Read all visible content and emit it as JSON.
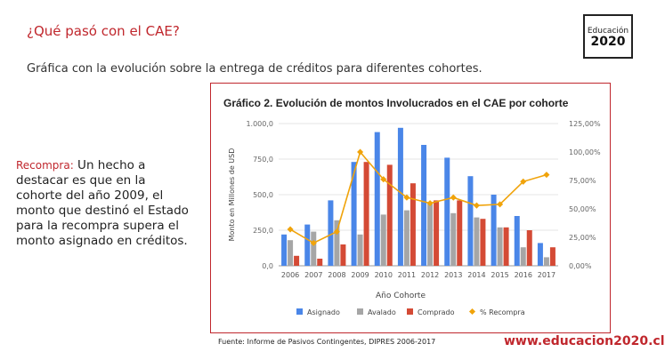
{
  "slide": {
    "title": "¿Qué pasó con el CAE?",
    "subtitle": "Gráfica con la evolución sobre la entrega de créditos para diferentes cohortes.",
    "side_label": "Recompra:",
    "side_text": " Un hecho a destacar es que en la cohorte del año 2009, el monto que destinó el Estado para la recompra supera  el monto asignado en créditos.",
    "source": "Fuente: Informe de Pasivos Contingentes, DIPRES 2006-2017",
    "url": "www.educacion2020.cl",
    "logo_line1": "Educación",
    "logo_line2": "2020"
  },
  "colors": {
    "accent": "#c0272d",
    "asignado": "#4a86e8",
    "avalado": "#a6a6a6",
    "comprado": "#d44a35",
    "recompra": "#f0a30a"
  },
  "chart_data": {
    "type": "bar",
    "title": "Gráfico 2. Evolución de montos Involucrados en el CAE por cohorte",
    "xlabel": "Año Cohorte",
    "ylabel": "Monto en Millones de USD",
    "y2label": "",
    "categories": [
      "2006",
      "2007",
      "2008",
      "2009",
      "2010",
      "2011",
      "2012",
      "2013",
      "2014",
      "2015",
      "2016",
      "2017"
    ],
    "ylim": [
      0,
      1000
    ],
    "y_ticks": [
      "0,0",
      "250,0",
      "500,0",
      "750,0",
      "1.000,0"
    ],
    "y2lim": [
      0,
      125
    ],
    "y2_ticks": [
      "0,00%",
      "25,00%",
      "50,00%",
      "75,00%",
      "100,00%",
      "125,00%"
    ],
    "series": [
      {
        "name": "Asignado",
        "type": "bar",
        "values": [
          220,
          290,
          460,
          730,
          940,
          970,
          850,
          760,
          630,
          500,
          350,
          160
        ]
      },
      {
        "name": "Avalado",
        "type": "bar",
        "values": [
          180,
          240,
          320,
          220,
          360,
          390,
          440,
          370,
          340,
          270,
          130,
          60
        ]
      },
      {
        "name": "Comprado",
        "type": "bar",
        "values": [
          70,
          50,
          150,
          730,
          710,
          580,
          460,
          460,
          330,
          270,
          250,
          130
        ]
      },
      {
        "name": "% Recompra",
        "type": "line",
        "axis": "secondary",
        "values": [
          32,
          20,
          30,
          100,
          76,
          60,
          55,
          60,
          53,
          54,
          74,
          80
        ]
      }
    ],
    "legend_position": "bottom",
    "grid": true
  }
}
